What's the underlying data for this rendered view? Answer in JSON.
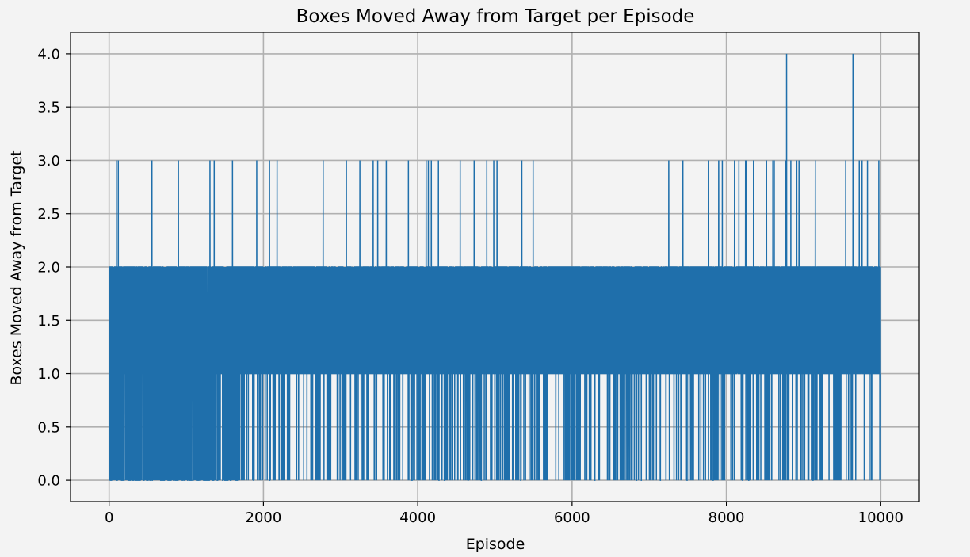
{
  "chart_data": {
    "type": "line",
    "title": "Boxes Moved Away from Target per Episode",
    "xlabel": "Episode",
    "ylabel": "Boxes Moved Away from Target",
    "xlim": [
      -500,
      10500
    ],
    "ylim": [
      -0.2,
      4.2
    ],
    "x_ticks": [
      0,
      2000,
      4000,
      6000,
      8000,
      10000
    ],
    "x_tick_labels": [
      "0",
      "2000",
      "4000",
      "6000",
      "8000",
      "10000"
    ],
    "y_ticks": [
      0.0,
      0.5,
      1.0,
      1.5,
      2.0,
      2.5,
      3.0,
      3.5,
      4.0
    ],
    "y_tick_labels": [
      "0.0",
      "0.5",
      "1.0",
      "1.5",
      "2.0",
      "2.5",
      "3.0",
      "3.5",
      "4.0"
    ],
    "grid": true,
    "line_color": "#1f6fab",
    "series": [
      {
        "episodes": [
          0,
          10000
        ],
        "segments": [
          {
            "x_range": [
              0,
              1700
            ],
            "values_observed": [
              0,
              1,
              2,
              3
            ]
          },
          {
            "x_range": [
              1700,
              8000
            ],
            "values_observed": [
              0,
              1,
              2,
              3
            ]
          },
          {
            "x_range": [
              8000,
              10000
            ],
            "values_observed": [
              0,
              1,
              2,
              3,
              4
            ]
          }
        ],
        "value_4_at": [
          8780,
          9640
        ]
      }
    ]
  }
}
